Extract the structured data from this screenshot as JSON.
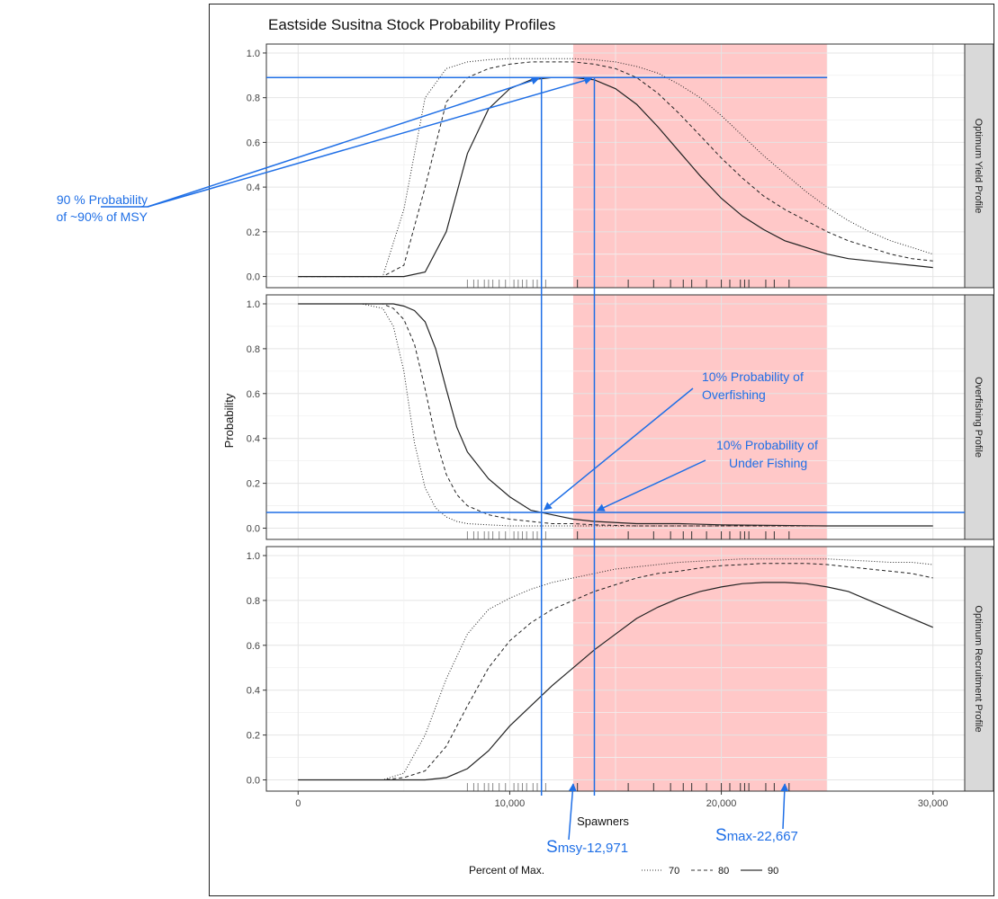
{
  "chart_data": {
    "type": "line",
    "title": "Eastside Susitna Stock Probability Profiles",
    "xlabel": "Spawners",
    "ylabel": "Probability",
    "xlim": [
      -1500,
      31500
    ],
    "ylim": [
      -0.05,
      1.04
    ],
    "x_ticks": [
      0,
      10000,
      20000,
      30000
    ],
    "x_tick_labels": [
      "0",
      "10,000",
      "20,000",
      "30,000"
    ],
    "y_ticks": [
      0,
      0.2,
      0.4,
      0.6,
      0.8,
      1.0
    ],
    "y_tick_labels": [
      "0.0",
      "0.2",
      "0.4",
      "0.6",
      "0.8",
      "1.0"
    ],
    "grid": true,
    "legend": {
      "title": "Percent of Max.",
      "position": "bottom",
      "entries": [
        {
          "label": "70",
          "style": "dotted"
        },
        {
          "label": "80",
          "style": "dashed"
        },
        {
          "label": "90",
          "style": "solid"
        }
      ]
    },
    "shaded_range": {
      "x0": 13000,
      "x1": 25000,
      "color": "#ffc8c8"
    },
    "rug_x": [
      8000,
      8300,
      8500,
      8800,
      9000,
      9200,
      9500,
      9800,
      10200,
      10400,
      10600,
      10800,
      11100,
      11300,
      11700,
      13200,
      15600,
      16800,
      17600,
      18200,
      18600,
      19300,
      20000,
      20400,
      20900,
      21100,
      21300,
      22100,
      22500,
      23200
    ],
    "panels": [
      {
        "strip": "Optimum Yield Profile",
        "x": [
          0,
          4000,
          5000,
          6000,
          7000,
          8000,
          9000,
          10000,
          11000,
          12000,
          13000,
          14000,
          15000,
          16000,
          17000,
          18000,
          19000,
          20000,
          21000,
          22000,
          23000,
          24000,
          25000,
          26000,
          27000,
          28000,
          29000,
          30000
        ],
        "series": [
          {
            "name": "70",
            "values": [
              0,
              0.0,
              0.3,
              0.8,
              0.93,
              0.96,
              0.97,
              0.975,
              0.975,
              0.975,
              0.975,
              0.97,
              0.96,
              0.94,
              0.91,
              0.86,
              0.8,
              0.72,
              0.63,
              0.54,
              0.46,
              0.38,
              0.31,
              0.25,
              0.2,
              0.16,
              0.13,
              0.1
            ]
          },
          {
            "name": "80",
            "values": [
              0,
              0.0,
              0.05,
              0.4,
              0.78,
              0.89,
              0.93,
              0.95,
              0.96,
              0.96,
              0.96,
              0.95,
              0.93,
              0.89,
              0.82,
              0.73,
              0.63,
              0.53,
              0.44,
              0.36,
              0.3,
              0.25,
              0.2,
              0.16,
              0.13,
              0.1,
              0.08,
              0.07
            ]
          },
          {
            "name": "90",
            "values": [
              0,
              0.0,
              0.0,
              0.02,
              0.2,
              0.55,
              0.75,
              0.84,
              0.88,
              0.89,
              0.89,
              0.88,
              0.84,
              0.77,
              0.67,
              0.56,
              0.45,
              0.35,
              0.27,
              0.21,
              0.16,
              0.13,
              0.1,
              0.08,
              0.07,
              0.06,
              0.05,
              0.04
            ]
          }
        ]
      },
      {
        "strip": "Overfishing Profile",
        "x": [
          0,
          3000,
          4000,
          4500,
          5000,
          5500,
          6000,
          6500,
          7000,
          7500,
          8000,
          9000,
          10000,
          11000,
          12000,
          13000,
          14000,
          16000,
          18000,
          20000,
          25000,
          30000
        ],
        "series": [
          {
            "name": "70",
            "values": [
              1.0,
              1.0,
              0.98,
              0.9,
              0.7,
              0.38,
              0.18,
              0.09,
              0.05,
              0.03,
              0.02,
              0.015,
              0.01,
              0.01,
              0.01,
              0.01,
              0.01,
              0.01,
              0.01,
              0.01,
              0.01,
              0.01
            ]
          },
          {
            "name": "80",
            "values": [
              1.0,
              1.0,
              1.0,
              0.98,
              0.93,
              0.82,
              0.62,
              0.4,
              0.24,
              0.15,
              0.1,
              0.06,
              0.04,
              0.03,
              0.02,
              0.02,
              0.015,
              0.01,
              0.01,
              0.01,
              0.01,
              0.01
            ]
          },
          {
            "name": "90",
            "values": [
              1.0,
              1.0,
              1.0,
              1.0,
              0.99,
              0.97,
              0.92,
              0.8,
              0.62,
              0.45,
              0.34,
              0.22,
              0.14,
              0.08,
              0.06,
              0.04,
              0.03,
              0.02,
              0.02,
              0.015,
              0.01,
              0.01
            ]
          }
        ]
      },
      {
        "strip": "Optimum Recruitment Profile",
        "x": [
          0,
          4000,
          5000,
          6000,
          7000,
          8000,
          9000,
          10000,
          11000,
          12000,
          13000,
          14000,
          15000,
          16000,
          17000,
          18000,
          19000,
          20000,
          21000,
          22000,
          23000,
          24000,
          25000,
          26000,
          27000,
          28000,
          29000,
          30000
        ],
        "series": [
          {
            "name": "70",
            "values": [
              0,
              0.0,
              0.03,
              0.2,
              0.45,
              0.65,
              0.76,
              0.81,
              0.85,
              0.88,
              0.9,
              0.92,
              0.94,
              0.95,
              0.96,
              0.97,
              0.975,
              0.98,
              0.985,
              0.985,
              0.985,
              0.985,
              0.985,
              0.98,
              0.975,
              0.97,
              0.97,
              0.96
            ]
          },
          {
            "name": "80",
            "values": [
              0,
              0.0,
              0.01,
              0.04,
              0.15,
              0.33,
              0.5,
              0.62,
              0.7,
              0.76,
              0.8,
              0.84,
              0.87,
              0.9,
              0.92,
              0.93,
              0.945,
              0.955,
              0.96,
              0.965,
              0.965,
              0.965,
              0.96,
              0.95,
              0.94,
              0.93,
              0.92,
              0.9
            ]
          },
          {
            "name": "90",
            "values": [
              0,
              0.0,
              0.0,
              0.0,
              0.01,
              0.05,
              0.13,
              0.24,
              0.33,
              0.42,
              0.5,
              0.58,
              0.65,
              0.72,
              0.77,
              0.81,
              0.84,
              0.86,
              0.875,
              0.88,
              0.88,
              0.875,
              0.86,
              0.84,
              0.8,
              0.76,
              0.72,
              0.68
            ]
          }
        ]
      }
    ],
    "reference_lines": {
      "horizontal": [
        {
          "panel": 0,
          "y": 0.89
        },
        {
          "panel": 1,
          "y": 0.07
        }
      ],
      "vertical_x": [
        11500,
        14000
      ],
      "color": "#1f6fe6"
    }
  },
  "annotations": {
    "left_note": [
      "90 % Probability",
      "of ~90% of MSY"
    ],
    "overfishing_note": [
      "10% Probability of",
      "Overfishing"
    ],
    "underfishing_note": [
      "10% Probability of",
      "Under Fishing"
    ],
    "smsy_prefix": "S",
    "smsy_label": "msy-12,971",
    "smax_prefix": "S",
    "smax_label": "max-22,667"
  }
}
